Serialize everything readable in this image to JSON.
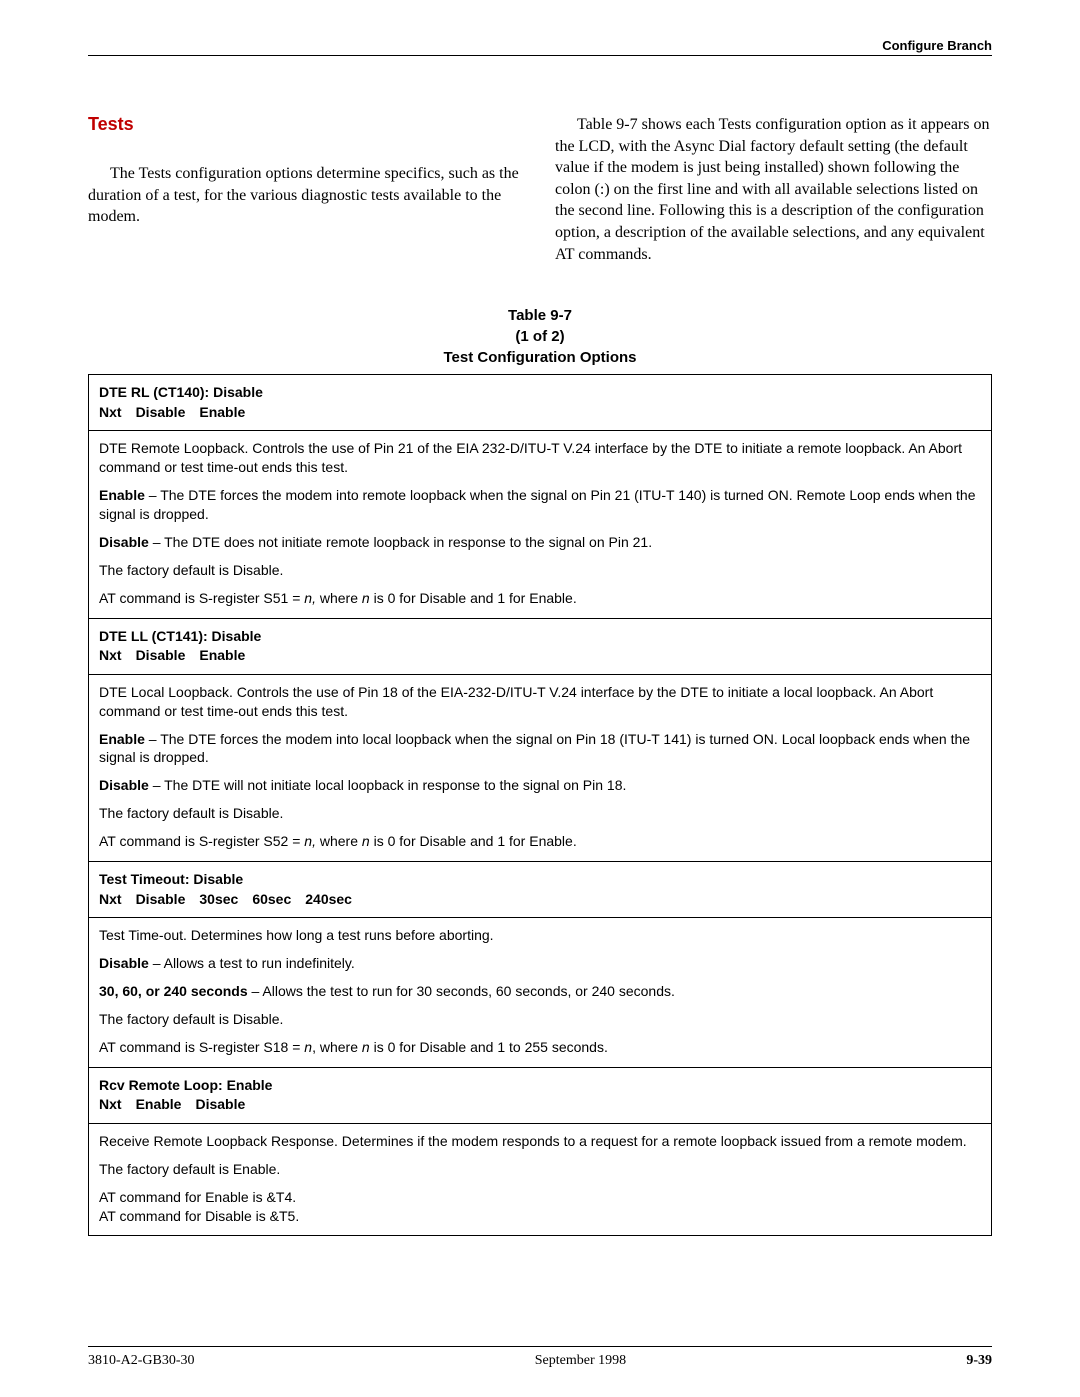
{
  "header": {
    "section": "Configure Branch"
  },
  "section": {
    "title": "Tests",
    "intro": "The Tests configuration options determine specifics, such as the duration of a test, for the various diagnostic tests available to the modem.",
    "lead_in": "Table 9-7 shows each Tests configuration option as it appears on the LCD, with the Async Dial factory default setting (the default value if the modem is just being installed) shown following the colon (:) on the first line and with all available selections listed on the second line. Following this is a description of the configuration option, a description of the available selections, and any equivalent AT commands."
  },
  "table": {
    "caption_line1": "Table 9-7",
    "caption_line2": "(1 of 2)",
    "caption_line3": "Test Configuration Options",
    "rows": [
      {
        "header_line1": "DTE RL (CT140): Disable",
        "header_prefix": "Nxt",
        "header_options": [
          "Disable",
          "Enable"
        ],
        "body": [
          {
            "runs": [
              {
                "t": "DTE Remote Loopback. Controls the use of Pin 21 of the EIA 232-D/ITU-T V.24 interface by the DTE to initiate a remote loopback. An Abort command or test time-out ends this test."
              }
            ]
          },
          {
            "runs": [
              {
                "t": "Enable",
                "b": true
              },
              {
                "t": " – The DTE forces the modem into remote loopback when the signal on Pin 21 (ITU-T 140) is turned ON. Remote Loop ends when the signal is dropped."
              }
            ]
          },
          {
            "runs": [
              {
                "t": "Disable",
                "b": true
              },
              {
                "t": " – The DTE does not initiate remote loopback in response to the signal on Pin 21."
              }
            ]
          },
          {
            "runs": [
              {
                "t": "The factory default is Disable."
              }
            ]
          },
          {
            "runs": [
              {
                "t": "AT command is S-register S51 = "
              },
              {
                "t": "n,",
                "i": true
              },
              {
                "t": " where "
              },
              {
                "t": "n",
                "i": true
              },
              {
                "t": " is 0 for Disable and 1 for Enable."
              }
            ]
          }
        ]
      },
      {
        "header_line1": "DTE LL (CT141): Disable",
        "header_prefix": "Nxt",
        "header_options": [
          "Disable",
          "Enable"
        ],
        "body": [
          {
            "runs": [
              {
                "t": "DTE Local Loopback. Controls the use of Pin 18 of the EIA-232-D/ITU-T V.24 interface by the DTE to initiate a local loopback. An Abort command or test time-out ends this test."
              }
            ]
          },
          {
            "runs": [
              {
                "t": "Enable",
                "b": true
              },
              {
                "t": " – The DTE forces the modem into local loopback when the signal on Pin 18 (ITU-T 141) is turned ON. Local loopback ends when the signal is dropped."
              }
            ]
          },
          {
            "runs": [
              {
                "t": "Disable",
                "b": true
              },
              {
                "t": " – The DTE will not initiate local loopback in response to the signal on Pin 18."
              }
            ]
          },
          {
            "runs": [
              {
                "t": "The factory default is Disable."
              }
            ]
          },
          {
            "runs": [
              {
                "t": "AT command is S-register S52 = "
              },
              {
                "t": "n,",
                "i": true
              },
              {
                "t": " where "
              },
              {
                "t": "n",
                "i": true
              },
              {
                "t": " is 0 for Disable and 1 for Enable."
              }
            ]
          }
        ]
      },
      {
        "header_line1": "Test Timeout: Disable",
        "header_prefix": "Nxt",
        "header_options": [
          "Disable",
          "30sec",
          "60sec",
          "240sec"
        ],
        "body": [
          {
            "runs": [
              {
                "t": "Test Time-out. Determines how long a test runs before aborting."
              }
            ]
          },
          {
            "runs": [
              {
                "t": "Disable",
                "b": true
              },
              {
                "t": " – Allows a test to run indefinitely."
              }
            ]
          },
          {
            "runs": [
              {
                "t": "30, 60, or 240 seconds",
                "b": true
              },
              {
                "t": " – Allows the test to run for 30 seconds, 60 seconds, or 240 seconds."
              }
            ]
          },
          {
            "runs": [
              {
                "t": "The factory default is Disable."
              }
            ]
          },
          {
            "runs": [
              {
                "t": "AT command is S-register S18 = "
              },
              {
                "t": "n",
                "i": true
              },
              {
                "t": ", where "
              },
              {
                "t": "n",
                "i": true
              },
              {
                "t": " is 0 for Disable and 1 to 255 seconds."
              }
            ]
          }
        ]
      },
      {
        "header_line1": "Rcv Remote Loop: Enable",
        "header_prefix": "Nxt",
        "header_options": [
          "Enable",
          "Disable"
        ],
        "body": [
          {
            "runs": [
              {
                "t": "Receive Remote Loopback Response. Determines if the modem responds to a request for a remote loopback issued from a remote modem."
              }
            ]
          },
          {
            "runs": [
              {
                "t": "The factory default is Enable."
              }
            ]
          },
          {
            "runs": [
              {
                "t": "AT command for Enable is &T4."
              }
            ],
            "tight": true
          },
          {
            "runs": [
              {
                "t": "AT command for Disable is &T5."
              }
            ]
          }
        ]
      }
    ]
  },
  "footer": {
    "doc_id": "3810-A2-GB30-30",
    "date": "September 1998",
    "page": "9-39"
  }
}
